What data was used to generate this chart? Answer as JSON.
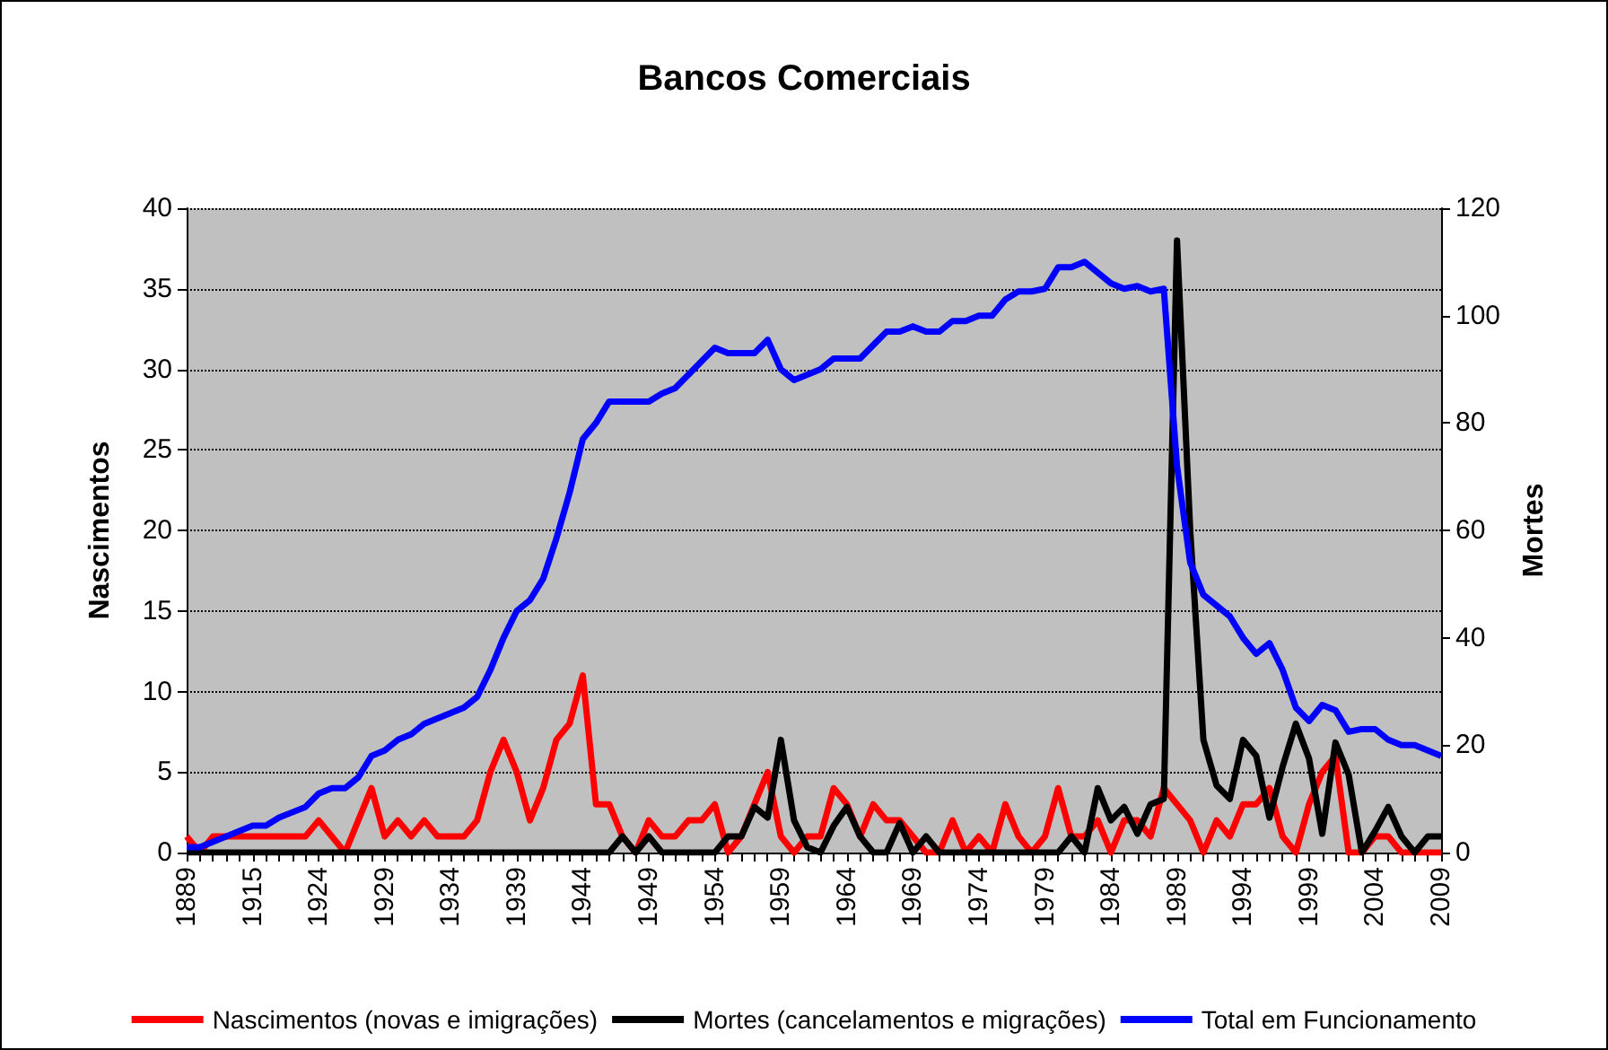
{
  "chart_data": {
    "type": "line",
    "title": "Bancos Comerciais",
    "ylabel": "Nascimentos",
    "y2label": "Mortes",
    "categories": [
      "1889",
      null,
      null,
      null,
      null,
      "1915",
      null,
      null,
      null,
      null,
      "1924",
      null,
      null,
      null,
      null,
      "1929",
      null,
      null,
      null,
      null,
      "1934",
      null,
      null,
      null,
      null,
      "1939",
      null,
      null,
      null,
      null,
      "1944",
      null,
      null,
      null,
      null,
      "1949",
      null,
      null,
      null,
      null,
      "1954",
      null,
      null,
      null,
      null,
      "1959",
      null,
      null,
      null,
      null,
      "1964",
      null,
      null,
      null,
      null,
      "1969",
      null,
      null,
      null,
      null,
      "1974",
      null,
      null,
      null,
      null,
      "1979",
      null,
      null,
      null,
      null,
      "1984",
      null,
      null,
      null,
      null,
      "1989",
      null,
      null,
      null,
      null,
      "1994",
      null,
      null,
      null,
      null,
      "1999",
      null,
      null,
      null,
      null,
      "2004",
      null,
      null,
      null,
      null,
      "2009"
    ],
    "series": [
      {
        "name": "Nascimentos (novas e imigrações)",
        "color": "#ff0000",
        "values": [
          1,
          0,
          1,
          1,
          1,
          1,
          1,
          1,
          1,
          1,
          2,
          1,
          0,
          2,
          4,
          1,
          2,
          1,
          2,
          1,
          1,
          1,
          2,
          5,
          7,
          5,
          2,
          4,
          7,
          8,
          11,
          3,
          3,
          1,
          0,
          2,
          1,
          1,
          2,
          2,
          3,
          0,
          1,
          3,
          5,
          1,
          0,
          1,
          1,
          4,
          3,
          1,
          3,
          2,
          2,
          1,
          0,
          0,
          2,
          0,
          1,
          0,
          3,
          1,
          0,
          1,
          4,
          1,
          1,
          2,
          0,
          2,
          2,
          1,
          4,
          3,
          2,
          0,
          2,
          1,
          3,
          3,
          4,
          1,
          0,
          3,
          5,
          6,
          0,
          0,
          1,
          1,
          0,
          0,
          0,
          0
        ]
      },
      {
        "name": "Mortes (cancelamentos e migrações)",
        "color": "#000000",
        "axis": "y2",
        "values": [
          0,
          0,
          0,
          0,
          0,
          0,
          0,
          0,
          0,
          0,
          0,
          0,
          0,
          0,
          0,
          0,
          0,
          0,
          0,
          0,
          0,
          0,
          0,
          0,
          0,
          0,
          0,
          0,
          0,
          0,
          0,
          0,
          0,
          3,
          0,
          3,
          0,
          0,
          0,
          0,
          0,
          3,
          3,
          8.5,
          6.5,
          21,
          6,
          1,
          0,
          5,
          8.5,
          3,
          0,
          0,
          5.5,
          0,
          3,
          0,
          0,
          0,
          0,
          0,
          0,
          0,
          0,
          0,
          0,
          3,
          0,
          12,
          6,
          8.5,
          3.5,
          9,
          10,
          114,
          60,
          21,
          12.5,
          10,
          21,
          18,
          6.5,
          16,
          24,
          17.5,
          3.5,
          20.5,
          14.5,
          0,
          4,
          8.5,
          3,
          0,
          3,
          3
        ]
      },
      {
        "name": "Total em Funcionamento",
        "color": "#0000ff",
        "axis": "y2",
        "values": [
          1,
          1,
          2,
          3,
          4,
          5,
          5,
          6.5,
          7.5,
          8.5,
          11,
          12,
          12,
          14,
          18,
          19,
          21,
          22,
          24,
          25,
          26,
          27,
          29,
          34,
          40,
          45,
          47,
          51,
          58.5,
          67,
          77,
          80,
          84,
          84,
          84,
          84,
          85.5,
          86.5,
          89,
          91.5,
          94,
          93,
          93,
          93,
          95.5,
          90,
          88,
          89,
          90,
          92,
          92,
          92,
          94.5,
          97,
          97,
          98,
          97,
          97,
          99,
          99,
          100,
          100,
          103,
          104.5,
          104.5,
          105,
          109,
          109,
          110,
          108,
          106,
          105,
          105.5,
          104.5,
          105,
          72,
          54,
          48,
          46,
          44,
          40,
          37,
          39,
          34,
          27,
          24.5,
          27.5,
          26.5,
          22.5,
          23,
          23,
          21,
          20,
          20,
          19,
          18
        ]
      }
    ],
    "ylim": [
      0,
      40
    ],
    "yticks": [
      0,
      5,
      10,
      15,
      20,
      25,
      30,
      35,
      40
    ],
    "y2lim": [
      0,
      120
    ],
    "y2ticks": [
      0,
      20,
      40,
      60,
      80,
      100,
      120
    ],
    "grid": "y",
    "legend": "bottom",
    "marker": "none",
    "line_style": "solid"
  }
}
